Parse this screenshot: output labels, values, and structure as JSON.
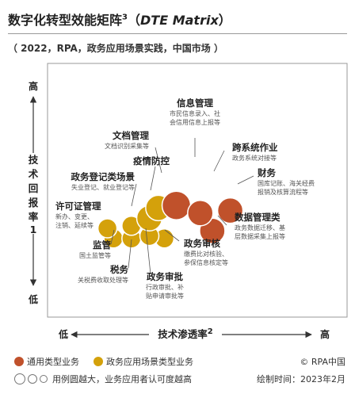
{
  "title": {
    "main": "数字化转型效能矩阵",
    "sup": "3",
    "open_paren": "（",
    "english": "DTE Matrix",
    "close_paren": "）"
  },
  "subtitle": "（ 2022，RPA，政务应用场景实践，中国市场 ）",
  "chart_data": {
    "type": "scatter",
    "x_axis": {
      "title": "技术渗透率",
      "title_sup": "2",
      "low_label": "低",
      "high_label": "高"
    },
    "y_axis": {
      "title_chars": [
        "技",
        "术",
        "回",
        "报",
        "率"
      ],
      "title_sup": "1",
      "low_label": "低",
      "high_label": "高"
    },
    "grid": false,
    "legend_position": "bottom",
    "series": [
      {
        "name": "通用类型业务",
        "color": "#c0512b",
        "points": [
          {
            "x": 0.43,
            "y": 0.44,
            "size": 3,
            "label": "信息管理",
            "sublabel": [
              "市民信息录入、社",
              "会信用信息上报等"
            ]
          },
          {
            "x": 0.51,
            "y": 0.41,
            "size": 2,
            "label": "跨系统作业",
            "sublabel": [
              "政务系统对接等"
            ]
          },
          {
            "x": 0.61,
            "y": 0.42,
            "size": 2,
            "label": "财务",
            "sublabel": [
              "国库记账、海关经费",
              "报销及核算流程等"
            ]
          },
          {
            "x": 0.55,
            "y": 0.34,
            "size": 2,
            "label": "数据管理类",
            "sublabel": [
              "政务数据迁移、基",
              "层数据采集上报等"
            ]
          }
        ]
      },
      {
        "name": "政务应用场景类型业务",
        "color": "#d4a10b",
        "points": [
          {
            "x": 0.37,
            "y": 0.43,
            "size": 2,
            "label": "文档管理",
            "sublabel": [
              "文档识别采集等"
            ]
          },
          {
            "x": 0.34,
            "y": 0.39,
            "size": 2,
            "label": "疫情防控",
            "sublabel": []
          },
          {
            "x": 0.28,
            "y": 0.36,
            "size": 1,
            "label": "政务登记类场景",
            "sublabel": [
              "失业登记、就业登记等"
            ]
          },
          {
            "x": 0.2,
            "y": 0.35,
            "size": 1,
            "label": "许可证管理",
            "sublabel": [
              "新办、变更、",
              "注销、延续等"
            ]
          },
          {
            "x": 0.22,
            "y": 0.31,
            "size": 1,
            "label": "监管",
            "sublabel": [
              "国土监管等"
            ]
          },
          {
            "x": 0.28,
            "y": 0.31,
            "size": 1,
            "label": "税务",
            "sublabel": [
              "关税费收取处理等"
            ]
          },
          {
            "x": 0.34,
            "y": 0.32,
            "size": 1,
            "label": "政务审批",
            "sublabel": [
              "行政审批、补",
              "贴申请审批等"
            ]
          },
          {
            "x": 0.39,
            "y": 0.31,
            "size": 1,
            "label": "政务审核",
            "sublabel": [
              "缴费比对核验、",
              "参保信息核定等"
            ]
          }
        ]
      }
    ],
    "size_note": "用例圆越大，业务应用者认可度越高"
  },
  "legend": {
    "general_label": "通用类型业务",
    "scenario_label": "政务应用场景类型业务",
    "size_note": "用例圆越大，业务应用者认可度越高"
  },
  "footer": {
    "copyright": "© RPA中国",
    "date": "绘制时间：2023年2月"
  },
  "colors": {
    "general": "#c0512b",
    "scenario": "#d4a10b",
    "plot_border": "#9a9a9a"
  }
}
